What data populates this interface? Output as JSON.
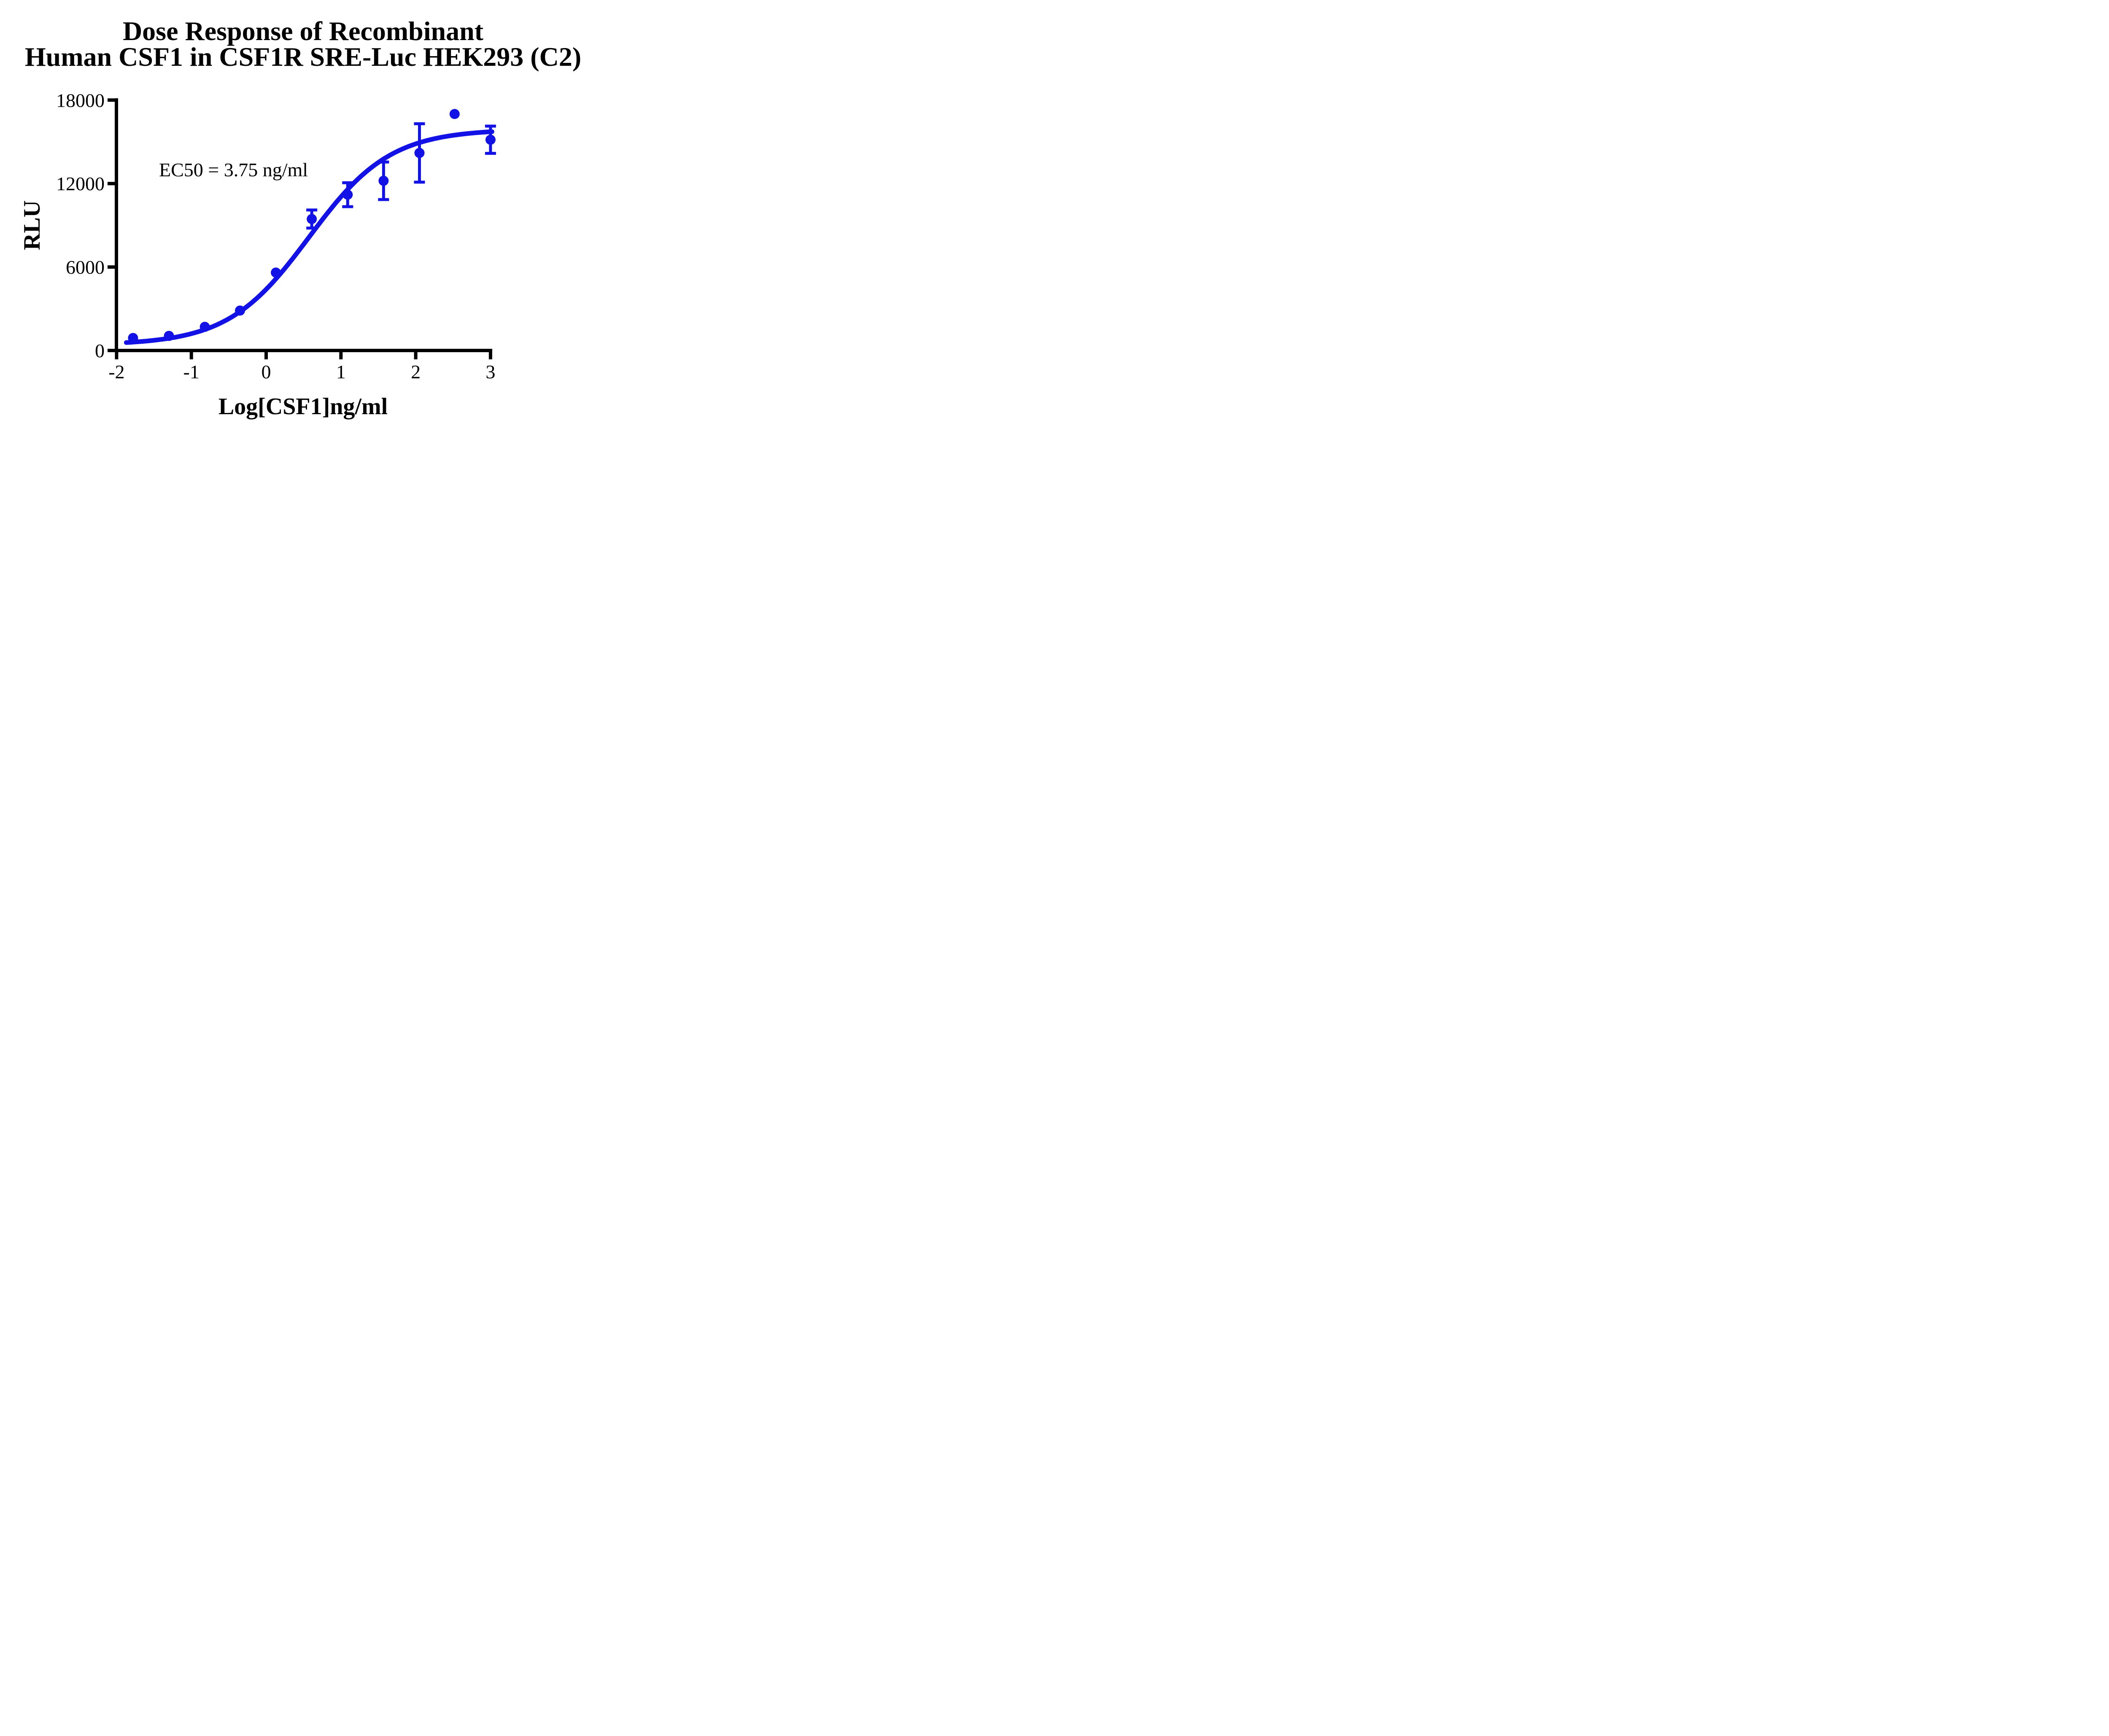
{
  "page": {
    "background": "#FFFFFF"
  },
  "title": {
    "line1": "Dose Response of Recombinant",
    "line2": "Human CSF1 in CSF1R SRE-Luc HEK293 (C2)"
  },
  "annotation": {
    "ec50": "EC50 = 3.75 ng/ml"
  },
  "colors": {
    "series": "#1212E6",
    "axis": "#000000",
    "text": "#000000"
  },
  "chart_data": {
    "type": "scatter",
    "title": "Dose Response of Recombinant Human CSF1 in CSF1R SRE-Luc HEK293 (C2)",
    "xlabel": "Log[CSF1]ng/ml",
    "ylabel": "RLU",
    "xlim": [
      -2,
      3.05
    ],
    "ylim": [
      0,
      18000
    ],
    "x_ticks": [
      -2,
      -1,
      0,
      1,
      2,
      3
    ],
    "y_ticks": [
      0,
      6000,
      12000,
      18000
    ],
    "grid": false,
    "legend_position": "none",
    "ec50_ng_ml": 3.75,
    "series": [
      {
        "name": "Recombinant Human CSF1",
        "color": "#1212E6",
        "marker": "circle",
        "x": [
          -1.78,
          -1.3,
          -0.82,
          -0.35,
          0.13,
          0.61,
          1.09,
          1.57,
          2.05,
          2.52,
          3.0
        ],
        "y": [
          900,
          1050,
          1700,
          2870,
          5600,
          9450,
          11200,
          12200,
          14200,
          17000,
          15150
        ],
        "y_err": [
          0,
          0,
          0,
          0,
          0,
          650,
          860,
          1350,
          2100,
          0,
          980
        ]
      }
    ],
    "fit_curve": {
      "model": "4PL logistic",
      "bottom": 400,
      "top": 15900,
      "log_ec50": 0.574,
      "hill_slope": 0.8,
      "x_start": -1.87,
      "x_end": 3.02
    }
  }
}
